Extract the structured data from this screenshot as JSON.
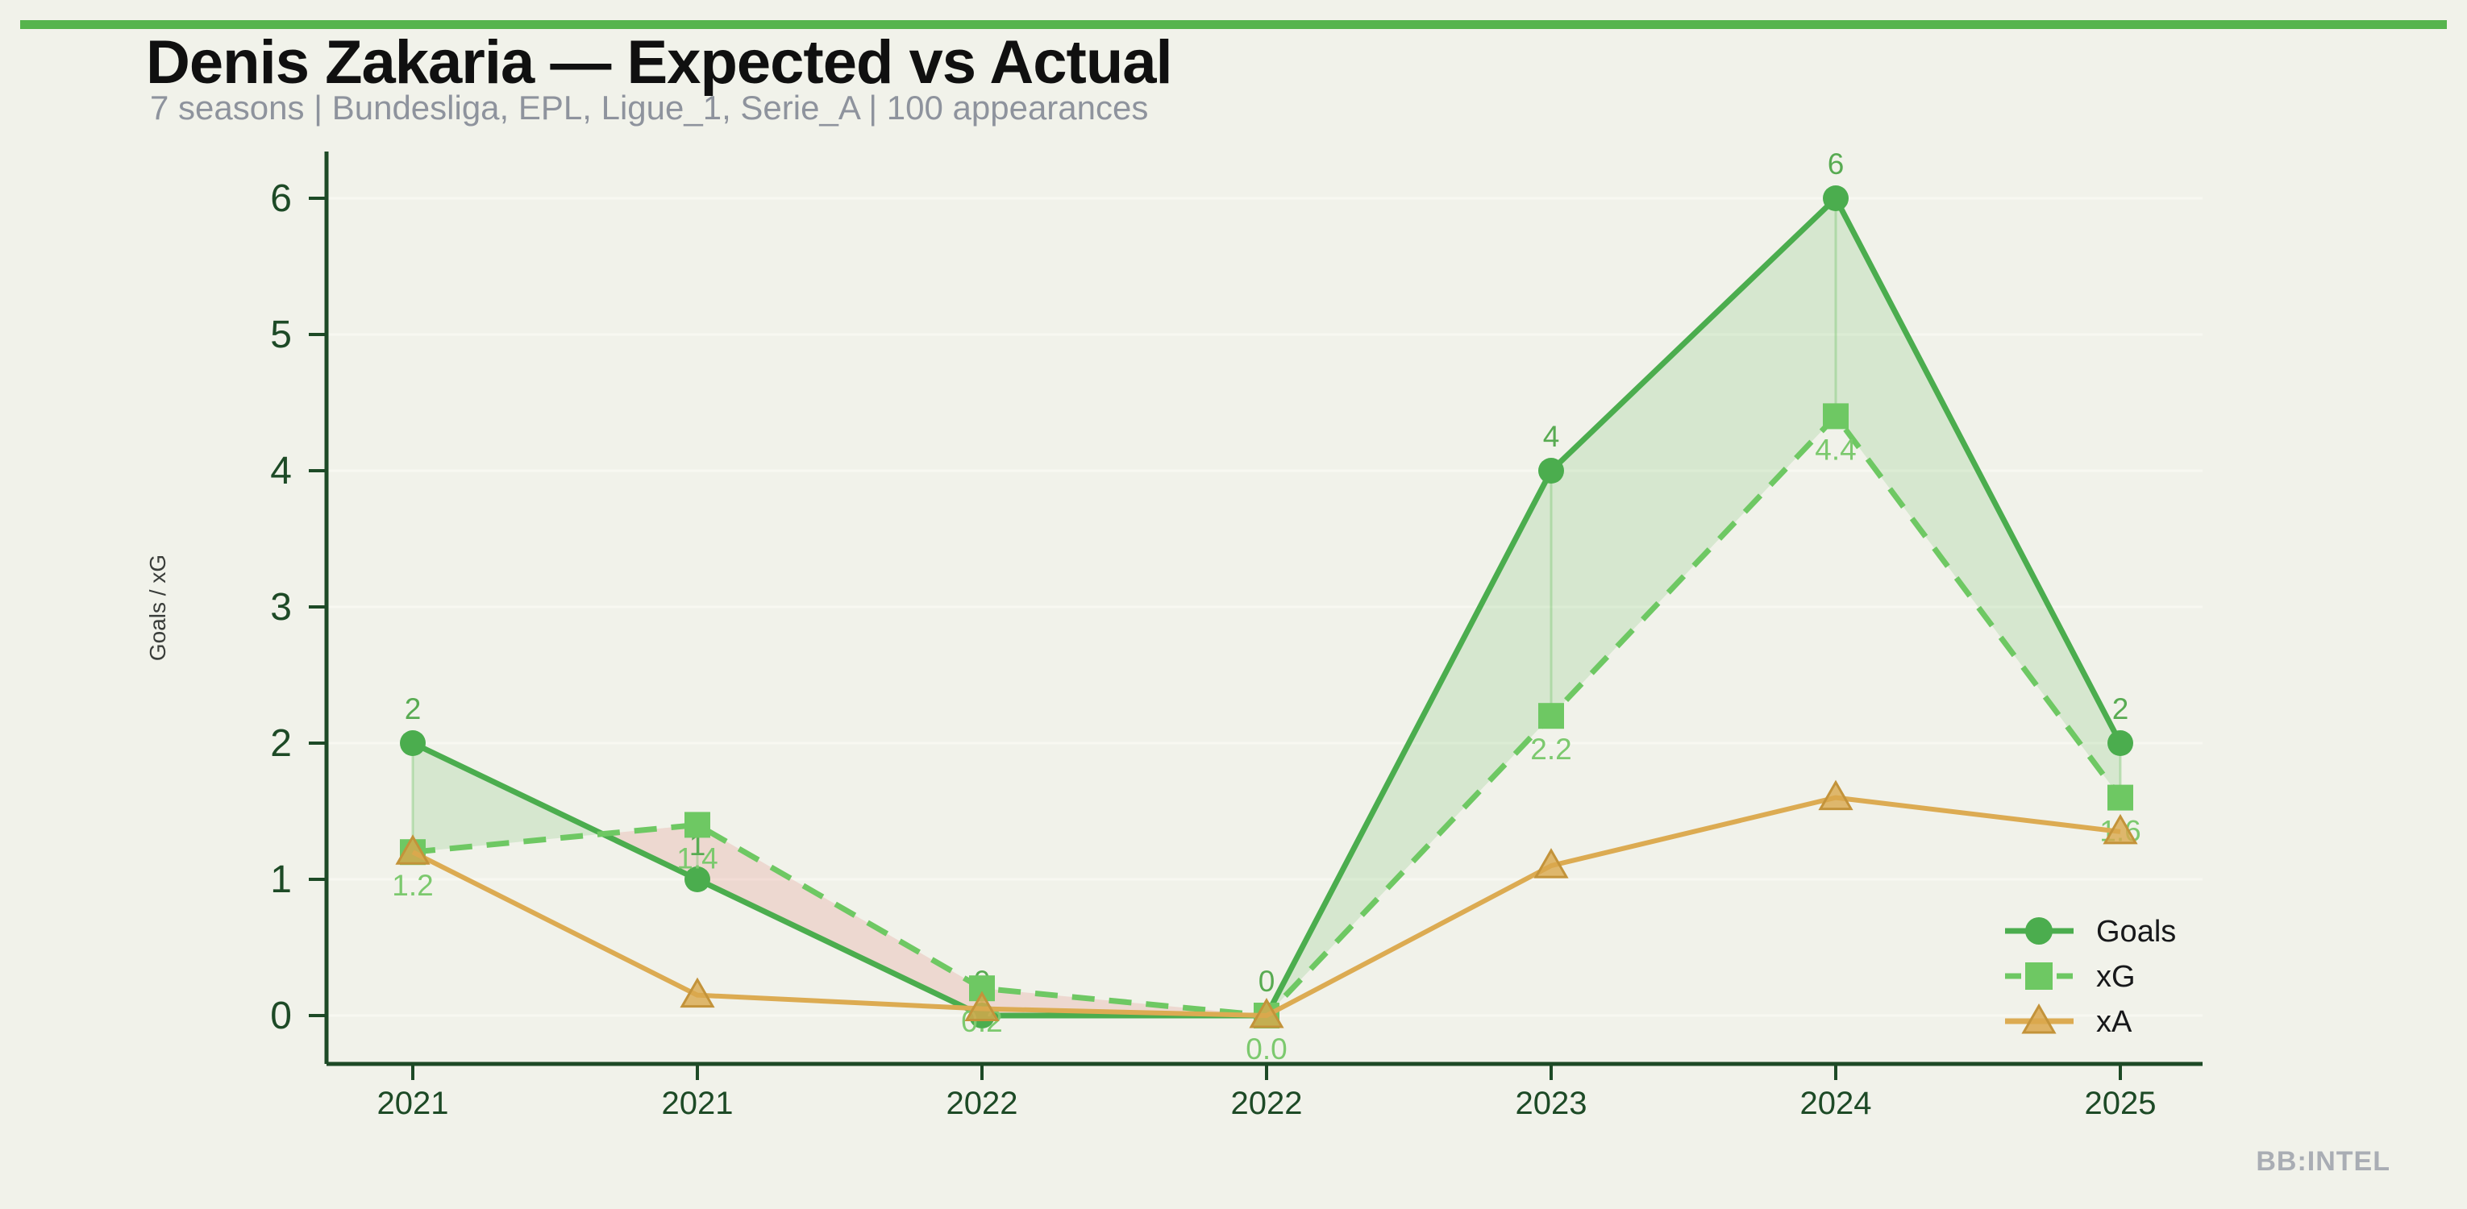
{
  "header": {
    "title": "Denis Zakaria — Expected vs Actual",
    "subtitle": "7 seasons | Bundesliga, EPL, Ligue_1, Serie_A | 100 appearances"
  },
  "footer": {
    "watermark": "BB:INTEL"
  },
  "chart_data": {
    "type": "line",
    "title": "Denis Zakaria — Expected vs Actual",
    "categories": [
      "2021",
      "2021",
      "2022",
      "2022",
      "2023",
      "2024",
      "2025"
    ],
    "xlabel": "",
    "ylabel": "Goals / xG",
    "ylim": [
      0,
      6
    ],
    "yticks": [
      0,
      1,
      2,
      3,
      4,
      5,
      6
    ],
    "grid": "horizontal",
    "legend_position": "lower right",
    "series": [
      {
        "name": "Goals",
        "marker": "circle",
        "line": "solid",
        "color": "#4bad4e",
        "label_color": "#58ab52",
        "values": [
          2,
          1,
          0,
          0,
          4,
          6,
          2
        ],
        "labels": [
          "2",
          "1",
          "0",
          "0",
          "4",
          "6",
          "2"
        ]
      },
      {
        "name": "xG",
        "marker": "square",
        "line": "dashed",
        "color": "#6ec863",
        "label_color": "#7cc96e",
        "values": [
          1.2,
          1.4,
          0.2,
          0.0,
          2.2,
          4.4,
          1.6
        ],
        "labels": [
          "1.2",
          "1.4",
          "0.2",
          "0.0",
          "2.2",
          "4.4",
          "1.6"
        ]
      },
      {
        "name": "xA",
        "marker": "triangle",
        "line": "solid",
        "color": "#dcab52",
        "values": [
          1.2,
          0.15,
          0.05,
          0.0,
          1.1,
          1.6,
          1.35
        ]
      }
    ],
    "fills": {
      "overperformance_color": "rgba(110,190,100,0.20)",
      "underperformance_color": "rgba(222,102,92,0.18)"
    },
    "colors": {
      "accent_bar": "#56b44d",
      "axis": "#1d4a26",
      "tick_label": "#1d4a26",
      "grid": "#f8f8f1",
      "background": "#f1f2ea",
      "title": "#101010",
      "subtitle": "#8e939d",
      "ylabel": "#3a3d3a",
      "legend_text": "#17181a",
      "watermark": "#a9adb4",
      "connector": "rgba(118,198,108,0.40)"
    }
  }
}
